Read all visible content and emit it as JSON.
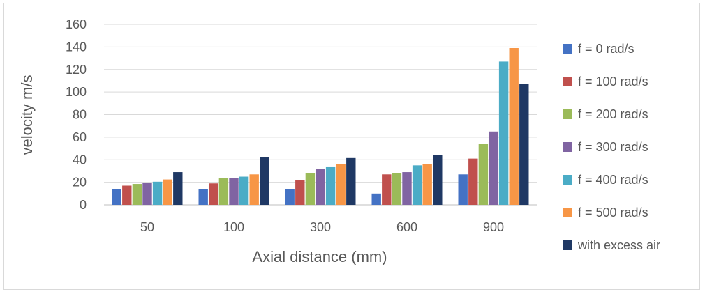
{
  "chart_data": {
    "type": "bar",
    "title": "",
    "xlabel": "Axial distance (mm)",
    "ylabel": "velocity m/s",
    "ylim": [
      0,
      160
    ],
    "yticks": [
      0,
      20,
      40,
      60,
      80,
      100,
      120,
      140,
      160
    ],
    "grid": true,
    "legend_position": "right",
    "categories": [
      "50",
      "100",
      "300",
      "600",
      "900"
    ],
    "series": [
      {
        "name": "f = 0 rad/s",
        "color": "#4472C4",
        "values": [
          14,
          14,
          14,
          10,
          27
        ]
      },
      {
        "name": "f = 100 rad/s",
        "color": "#C0504D",
        "values": [
          17,
          19,
          22,
          27,
          41
        ]
      },
      {
        "name": "f = 200 rad/s",
        "color": "#9BBB59",
        "values": [
          18.5,
          23.5,
          28,
          28,
          54
        ]
      },
      {
        "name": "f = 300 rad/s",
        "color": "#8064A2",
        "values": [
          19.5,
          24,
          32,
          29,
          65
        ]
      },
      {
        "name": "f = 400 rad/s",
        "color": "#4BACC6",
        "values": [
          20.5,
          25,
          34,
          35,
          127
        ]
      },
      {
        "name": "f = 500 rad/s",
        "color": "#F79646",
        "values": [
          22.5,
          27,
          36,
          36,
          139
        ]
      },
      {
        "name": "with excess air",
        "color": "#1F3864",
        "values": [
          29,
          42,
          41.5,
          44,
          107
        ]
      }
    ]
  }
}
